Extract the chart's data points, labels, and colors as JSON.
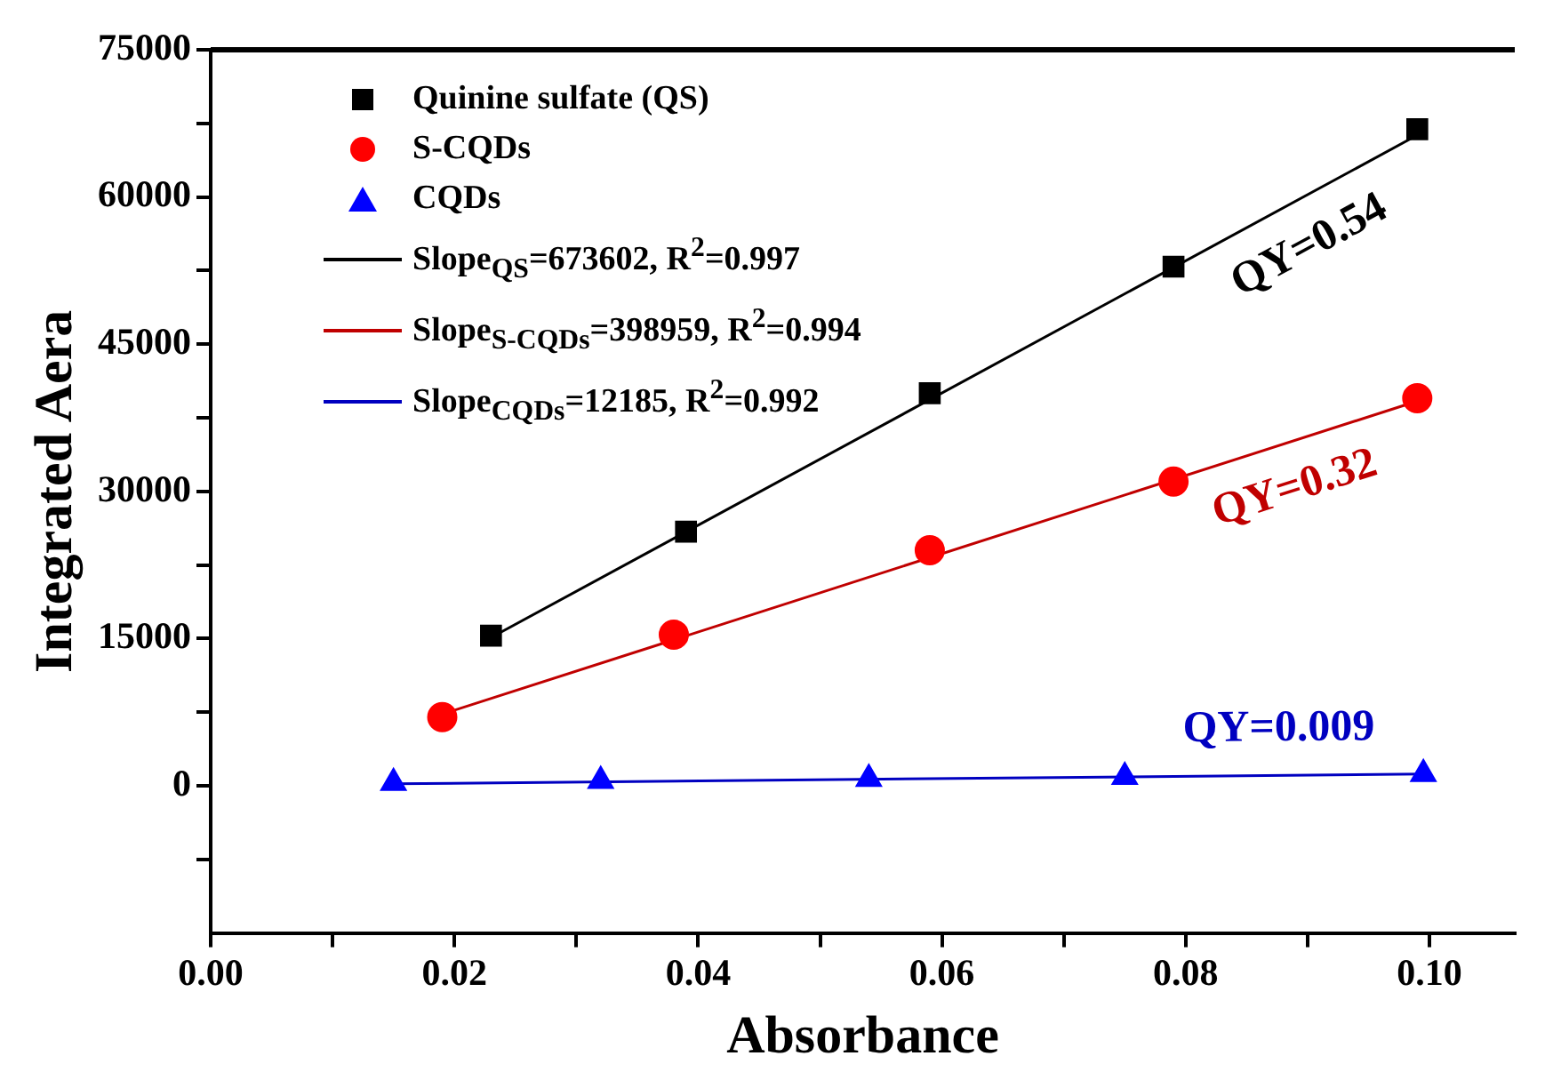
{
  "chart_data": {
    "type": "scatter",
    "xlabel": "Absorbance",
    "ylabel": "Integrated Aera",
    "xlim": [
      0,
      0.107
    ],
    "ylim": [
      -15000,
      75000
    ],
    "xticks": [
      {
        "value": 0,
        "label": "0.00"
      },
      {
        "value": 0.01,
        "label": null
      },
      {
        "value": 0.02,
        "label": "0.02"
      },
      {
        "value": 0.03,
        "label": null
      },
      {
        "value": 0.04,
        "label": "0.04"
      },
      {
        "value": 0.05,
        "label": null
      },
      {
        "value": 0.06,
        "label": "0.06"
      },
      {
        "value": 0.07,
        "label": null
      },
      {
        "value": 0.08,
        "label": "0.08"
      },
      {
        "value": 0.09,
        "label": null
      },
      {
        "value": 0.1,
        "label": "0.10"
      }
    ],
    "yticks": [
      {
        "value": -7500,
        "label": null
      },
      0,
      {
        "value": 7500,
        "label": null
      },
      15000,
      {
        "value": 22500,
        "label": null
      },
      30000,
      {
        "value": 37500,
        "label": null
      },
      45000,
      {
        "value": 52500,
        "label": null
      },
      60000,
      {
        "value": 67500,
        "label": null
      },
      75000
    ],
    "grid": false,
    "legend": "top left",
    "series": [
      {
        "name": "Quinine sulfate (QS)",
        "type": "scatter",
        "marker": "square",
        "color": "#000000",
        "x": [
          0.023,
          0.039,
          0.059,
          0.079,
          0.099
        ],
        "values": [
          15300,
          25900,
          40000,
          52900,
          66900
        ]
      },
      {
        "name": "S-CQDs",
        "type": "scatter",
        "marker": "circle",
        "color": "#ff0000",
        "x": [
          0.019,
          0.038,
          0.059,
          0.079,
          0.099
        ],
        "values": [
          7000,
          15400,
          24000,
          31000,
          39500
        ]
      },
      {
        "name": "CQDs",
        "type": "scatter",
        "marker": "triangle",
        "color": "#0000ff",
        "x": [
          0.015,
          0.032,
          0.054,
          0.075,
          0.0995
        ],
        "values": [
          300,
          500,
          700,
          900,
          1200
        ]
      },
      {
        "name": "Slope$_{QS}$=673602, R$^{2}$=0.997",
        "type": "line",
        "marker": "none",
        "color": "#000000",
        "x": [
          0.023,
          0.099
        ],
        "values": [
          15100,
          66300
        ]
      },
      {
        "name": "Slope$_{S-CQDs}$=398959, R$^{2}$=0.994",
        "type": "line",
        "marker": "none",
        "color": "#c00000",
        "x": [
          0.019,
          0.099
        ],
        "values": [
          7300,
          39200
        ]
      },
      {
        "name": "Slope$_{CQDs}$=12185, R$^{2}$=0.992",
        "type": "line",
        "marker": "none",
        "color": "#0000c0",
        "x": [
          0.015,
          0.0995
        ],
        "values": [
          200,
          1200
        ]
      }
    ],
    "annotations": [
      "QY=0.54",
      "QY=0.32",
      "QY=0.009"
    ]
  }
}
